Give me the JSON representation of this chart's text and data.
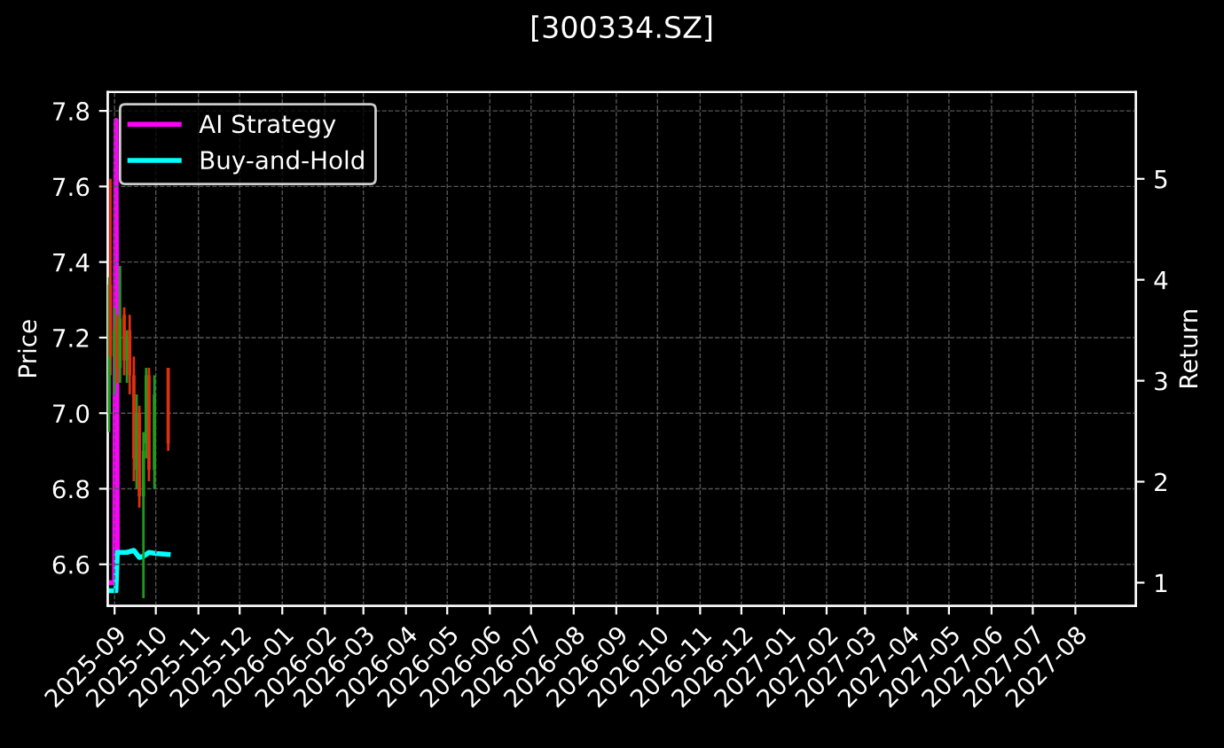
{
  "chart_data": {
    "type": "candlestick",
    "title": "[300334.SZ]",
    "ylabel": "Price",
    "y2label": "Return",
    "x": [
      "2025-08-28",
      "2025-08-29",
      "2025-09-01",
      "2025-09-03",
      "2025-09-05",
      "2025-09-08",
      "2025-09-10",
      "2025-09-12",
      "2025-09-15",
      "2025-09-17",
      "2025-09-19",
      "2025-09-22",
      "2025-09-24",
      "2025-09-26",
      "2025-09-30",
      "2025-10-10"
    ],
    "ohlc": [
      [
        7.0,
        7.36,
        6.95,
        7.34
      ],
      [
        7.34,
        7.62,
        7.1,
        7.15
      ],
      [
        7.15,
        7.28,
        7.05,
        7.22
      ],
      [
        7.24,
        7.26,
        7.08,
        7.12
      ],
      [
        7.12,
        7.39,
        7.08,
        7.25
      ],
      [
        7.26,
        7.28,
        7.1,
        7.14
      ],
      [
        7.14,
        7.22,
        7.08,
        7.2
      ],
      [
        7.22,
        7.26,
        7.05,
        7.1
      ],
      [
        7.1,
        7.15,
        6.82,
        6.88
      ],
      [
        6.85,
        7.05,
        6.8,
        7.0
      ],
      [
        7.0,
        7.02,
        6.75,
        6.78
      ],
      [
        6.78,
        6.95,
        6.51,
        6.9
      ],
      [
        6.92,
        7.12,
        6.88,
        7.1
      ],
      [
        7.1,
        7.12,
        6.82,
        6.85
      ],
      [
        6.85,
        7.1,
        6.8,
        7.05
      ],
      [
        7.12,
        7.12,
        6.9,
        6.92
      ]
    ],
    "colors": [
      "#1f9a1f",
      "#e03010",
      "#1f9a1f",
      "#e03010",
      "#1f9a1f",
      "#e03010",
      "#1f9a1f",
      "#e03010",
      "#e03010",
      "#1f9a1f",
      "#e03010",
      "#1f9a1f",
      "#1f9a1f",
      "#e03010",
      "#1f9a1f",
      "#e03010"
    ],
    "series": [
      {
        "name": "AI Strategy",
        "type": "line",
        "axis": "y2",
        "color": "#ff00ff",
        "x": [
          "2025-08-27",
          "2025-09-01",
          "2025-09-02",
          "2025-09-03"
        ],
        "values": [
          1.0,
          1.0,
          5.58,
          1.3
        ]
      },
      {
        "name": "Buy-and-Hold",
        "type": "line",
        "axis": "y2",
        "color": "#00ffff",
        "x": [
          "2025-08-27",
          "2025-08-29",
          "2025-09-02",
          "2025-09-03",
          "2025-09-10",
          "2025-09-15",
          "2025-09-19",
          "2025-09-22",
          "2025-09-26",
          "2025-10-01",
          "2025-10-10"
        ],
        "values": [
          0.92,
          0.92,
          0.92,
          1.3,
          1.3,
          1.32,
          1.25,
          1.26,
          1.3,
          1.29,
          1.28
        ]
      }
    ],
    "xlim": [
      "2025-08-27",
      "2027-09-14"
    ],
    "xticks": [
      {
        "value": "2025-09-01",
        "label": "2025-09"
      },
      {
        "value": "2025-10-01",
        "label": "2025-10"
      },
      {
        "value": "2025-11-01",
        "label": "2025-11"
      },
      {
        "value": "2025-12-01",
        "label": "2025-12"
      },
      {
        "value": "2026-01-01",
        "label": "2026-01"
      },
      {
        "value": "2026-02-01",
        "label": "2026-02"
      },
      {
        "value": "2026-03-01",
        "label": "2026-03"
      },
      {
        "value": "2026-04-01",
        "label": "2026-04"
      },
      {
        "value": "2026-05-01",
        "label": "2026-05"
      },
      {
        "value": "2026-06-01",
        "label": "2026-06"
      },
      {
        "value": "2026-07-01",
        "label": "2026-07"
      },
      {
        "value": "2026-08-01",
        "label": "2026-08"
      },
      {
        "value": "2026-09-01",
        "label": "2026-09"
      },
      {
        "value": "2026-10-01",
        "label": "2026-10"
      },
      {
        "value": "2026-11-01",
        "label": "2026-11"
      },
      {
        "value": "2026-12-01",
        "label": "2026-12"
      },
      {
        "value": "2027-01-01",
        "label": "2027-01"
      },
      {
        "value": "2027-02-01",
        "label": "2027-02"
      },
      {
        "value": "2027-03-01",
        "label": "2027-03"
      },
      {
        "value": "2027-04-01",
        "label": "2027-04"
      },
      {
        "value": "2027-05-01",
        "label": "2027-05"
      },
      {
        "value": "2027-06-01",
        "label": "2027-06"
      },
      {
        "value": "2027-07-01",
        "label": "2027-07"
      },
      {
        "value": "2027-08-01",
        "label": "2027-08"
      }
    ],
    "ylim": [
      6.49,
      7.85
    ],
    "yticks": [
      {
        "value": 6.6,
        "label": "6.6"
      },
      {
        "value": 6.8,
        "label": "6.8"
      },
      {
        "value": 7.0,
        "label": "7.0"
      },
      {
        "value": 7.2,
        "label": "7.2"
      },
      {
        "value": 7.4,
        "label": "7.4"
      },
      {
        "value": 7.6,
        "label": "7.6"
      },
      {
        "value": 7.8,
        "label": "7.8"
      }
    ],
    "y2lim": [
      0.77,
      5.86
    ],
    "y2ticks": [
      1,
      2,
      3,
      4,
      5
    ],
    "grid": true,
    "legend": "top left"
  }
}
